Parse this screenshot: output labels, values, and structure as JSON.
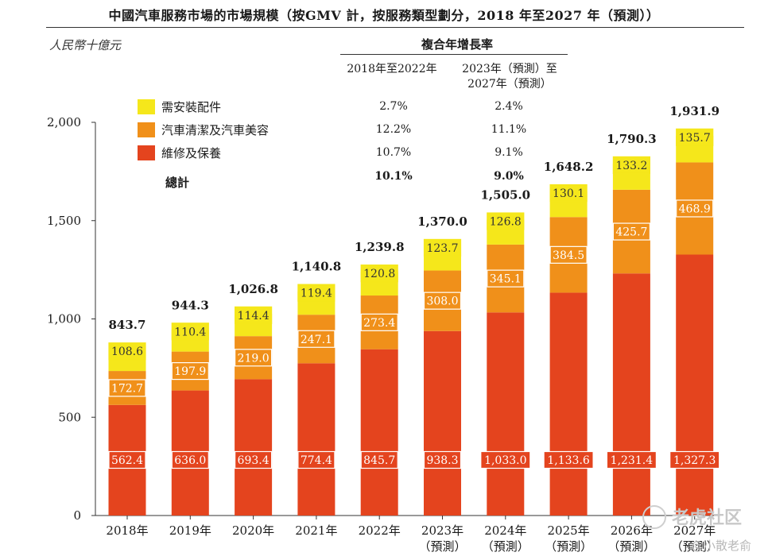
{
  "title": "中國汽車服務市場的市場規模（按GMV 計，按服務類型劃分，2018 年至2027 年（預測））",
  "unit": "人民幣十億元",
  "cagr": {
    "header": "複合年增長率",
    "col1": "2018年至2022年",
    "col2_line1": "2023年（預測）至",
    "col2_line2": "2027年（預測）",
    "rows": [
      {
        "label": "需安裝配件",
        "c1": "2.7%",
        "c2": "2.4%",
        "color": "#f5e71b"
      },
      {
        "label": "汽車清潔及汽車美容",
        "c1": "12.2%",
        "c2": "11.1%",
        "color": "#f0901a"
      },
      {
        "label": "維修及保養",
        "c1": "10.7%",
        "c2": "9.1%",
        "color": "#e4441e"
      }
    ],
    "total_label": "總計",
    "total_c1": "10.1%",
    "total_c2": "9.0%"
  },
  "watermark": {
    "brand": "老虎社区",
    "author": "@小散老俞"
  },
  "chart_data": {
    "type": "bar",
    "stacked": true,
    "categories": [
      "2018年",
      "2019年",
      "2020年",
      "2021年",
      "2022年",
      "2023年",
      "2024年",
      "2025年",
      "2026年",
      "2027年"
    ],
    "category_sublabels": [
      "",
      "",
      "",
      "",
      "",
      "（預測）",
      "（預測）",
      "（預測）",
      "（預測）",
      "（預測）"
    ],
    "series": [
      {
        "name": "維修及保養",
        "color": "#e4441e",
        "label_bg": "#e4441e",
        "label_color": "#ffffff",
        "values": [
          562.4,
          636.0,
          693.4,
          774.4,
          845.7,
          938.3,
          1033.0,
          1133.6,
          1231.4,
          1327.3
        ],
        "labels": [
          "562.4",
          "636.0",
          "693.4",
          "774.4",
          "845.7",
          "938.3",
          "1,033.0",
          "1,133.6",
          "1,231.4",
          "1,327.3"
        ]
      },
      {
        "name": "汽車清潔及汽車美容",
        "color": "#f0901a",
        "label_bg": "#f0901a",
        "label_color": "#ffffff",
        "values": [
          172.7,
          197.9,
          219.0,
          247.1,
          273.4,
          308.0,
          345.1,
          384.5,
          425.7,
          468.9
        ],
        "labels": [
          "172.7",
          "197.9",
          "219.0",
          "247.1",
          "273.4",
          "308.0",
          "345.1",
          "384.5",
          "425.7",
          "468.9"
        ]
      },
      {
        "name": "需安裝配件",
        "color": "#f5e71b",
        "label_bg": "#f5e71b",
        "label_color": "#333333",
        "values": [
          108.6,
          110.4,
          114.4,
          119.4,
          120.8,
          123.7,
          126.8,
          130.1,
          133.2,
          135.7
        ],
        "labels": [
          "108.6",
          "110.4",
          "114.4",
          "119.4",
          "120.8",
          "123.7",
          "126.8",
          "130.1",
          "133.2",
          "135.7"
        ]
      }
    ],
    "totals": [
      843.7,
      944.3,
      1026.8,
      1140.8,
      1239.8,
      1370.0,
      1505.0,
      1648.2,
      1790.3,
      1931.9
    ],
    "total_labels": [
      "843.7",
      "944.3",
      "1,026.8",
      "1,140.8",
      "1,239.8",
      "1,370.0",
      "1,505.0",
      "1,648.2",
      "1,790.3",
      "1,931.9"
    ],
    "ylim": [
      0,
      2000
    ],
    "yticks": [
      0,
      500,
      1000,
      1500,
      2000
    ],
    "ytick_labels": [
      "0",
      "500",
      "1,000",
      "1,500",
      "2,000"
    ],
    "grid": false,
    "legend_position": "top-left"
  }
}
